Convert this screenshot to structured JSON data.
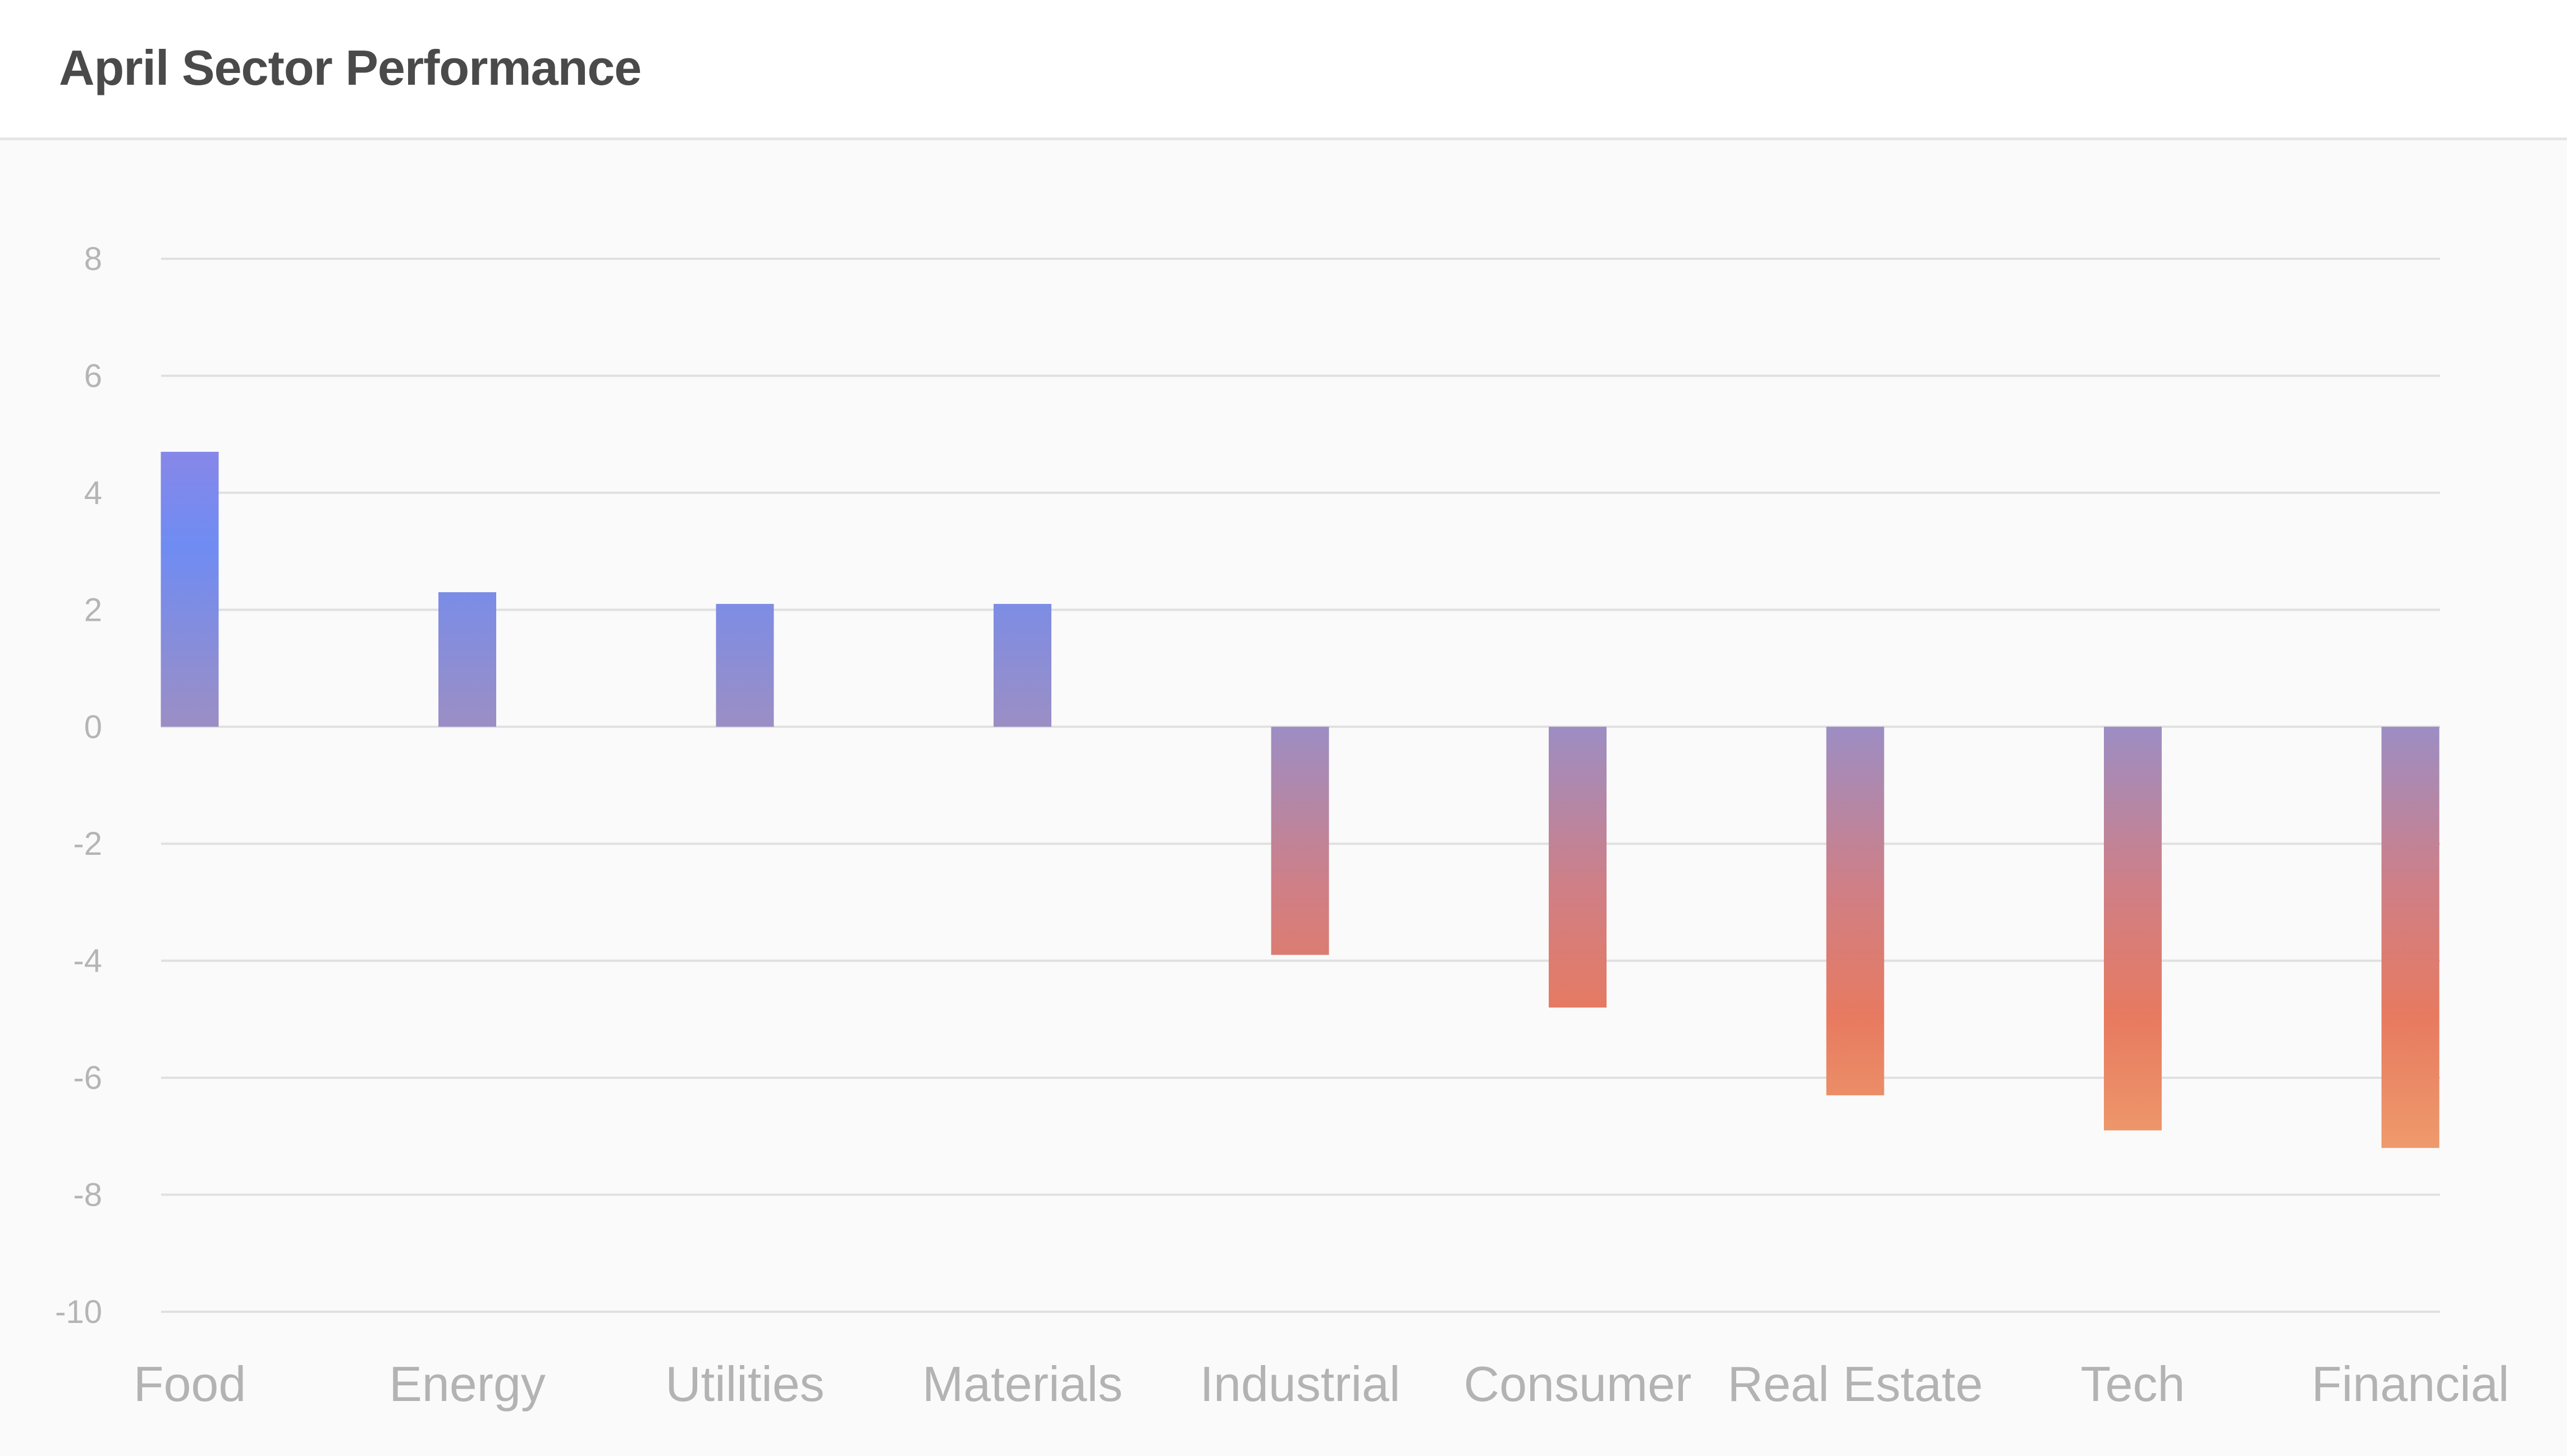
{
  "header": {
    "title": "April Sector Performance"
  },
  "chart_data": {
    "type": "bar",
    "title": "April Sector Performance",
    "xlabel": "",
    "ylabel": "",
    "categories": [
      "Food",
      "Energy",
      "Utilities",
      "Materials",
      "Industrial",
      "Consumer",
      "Real Estate",
      "Tech",
      "Financial"
    ],
    "values": [
      4.7,
      2.3,
      2.1,
      2.1,
      -3.9,
      -4.8,
      -6.3,
      -6.9,
      -7.2
    ],
    "ylim": [
      -10,
      8
    ],
    "yticks": [
      8,
      6,
      4,
      2,
      0,
      -2,
      -4,
      -6,
      -8,
      -10
    ],
    "grid": true,
    "legend": "none",
    "colors": {
      "positive_top": "#7b8cf0",
      "positive_mid": "#6f8cf3",
      "zero": "#9a8ec6",
      "negative_mid": "#e47a62",
      "negative_bottom": "#ee9c6c",
      "grid": "#e0e0e0",
      "tick_text": "#b5b5b5",
      "title_text": "#4a4a4a"
    }
  }
}
